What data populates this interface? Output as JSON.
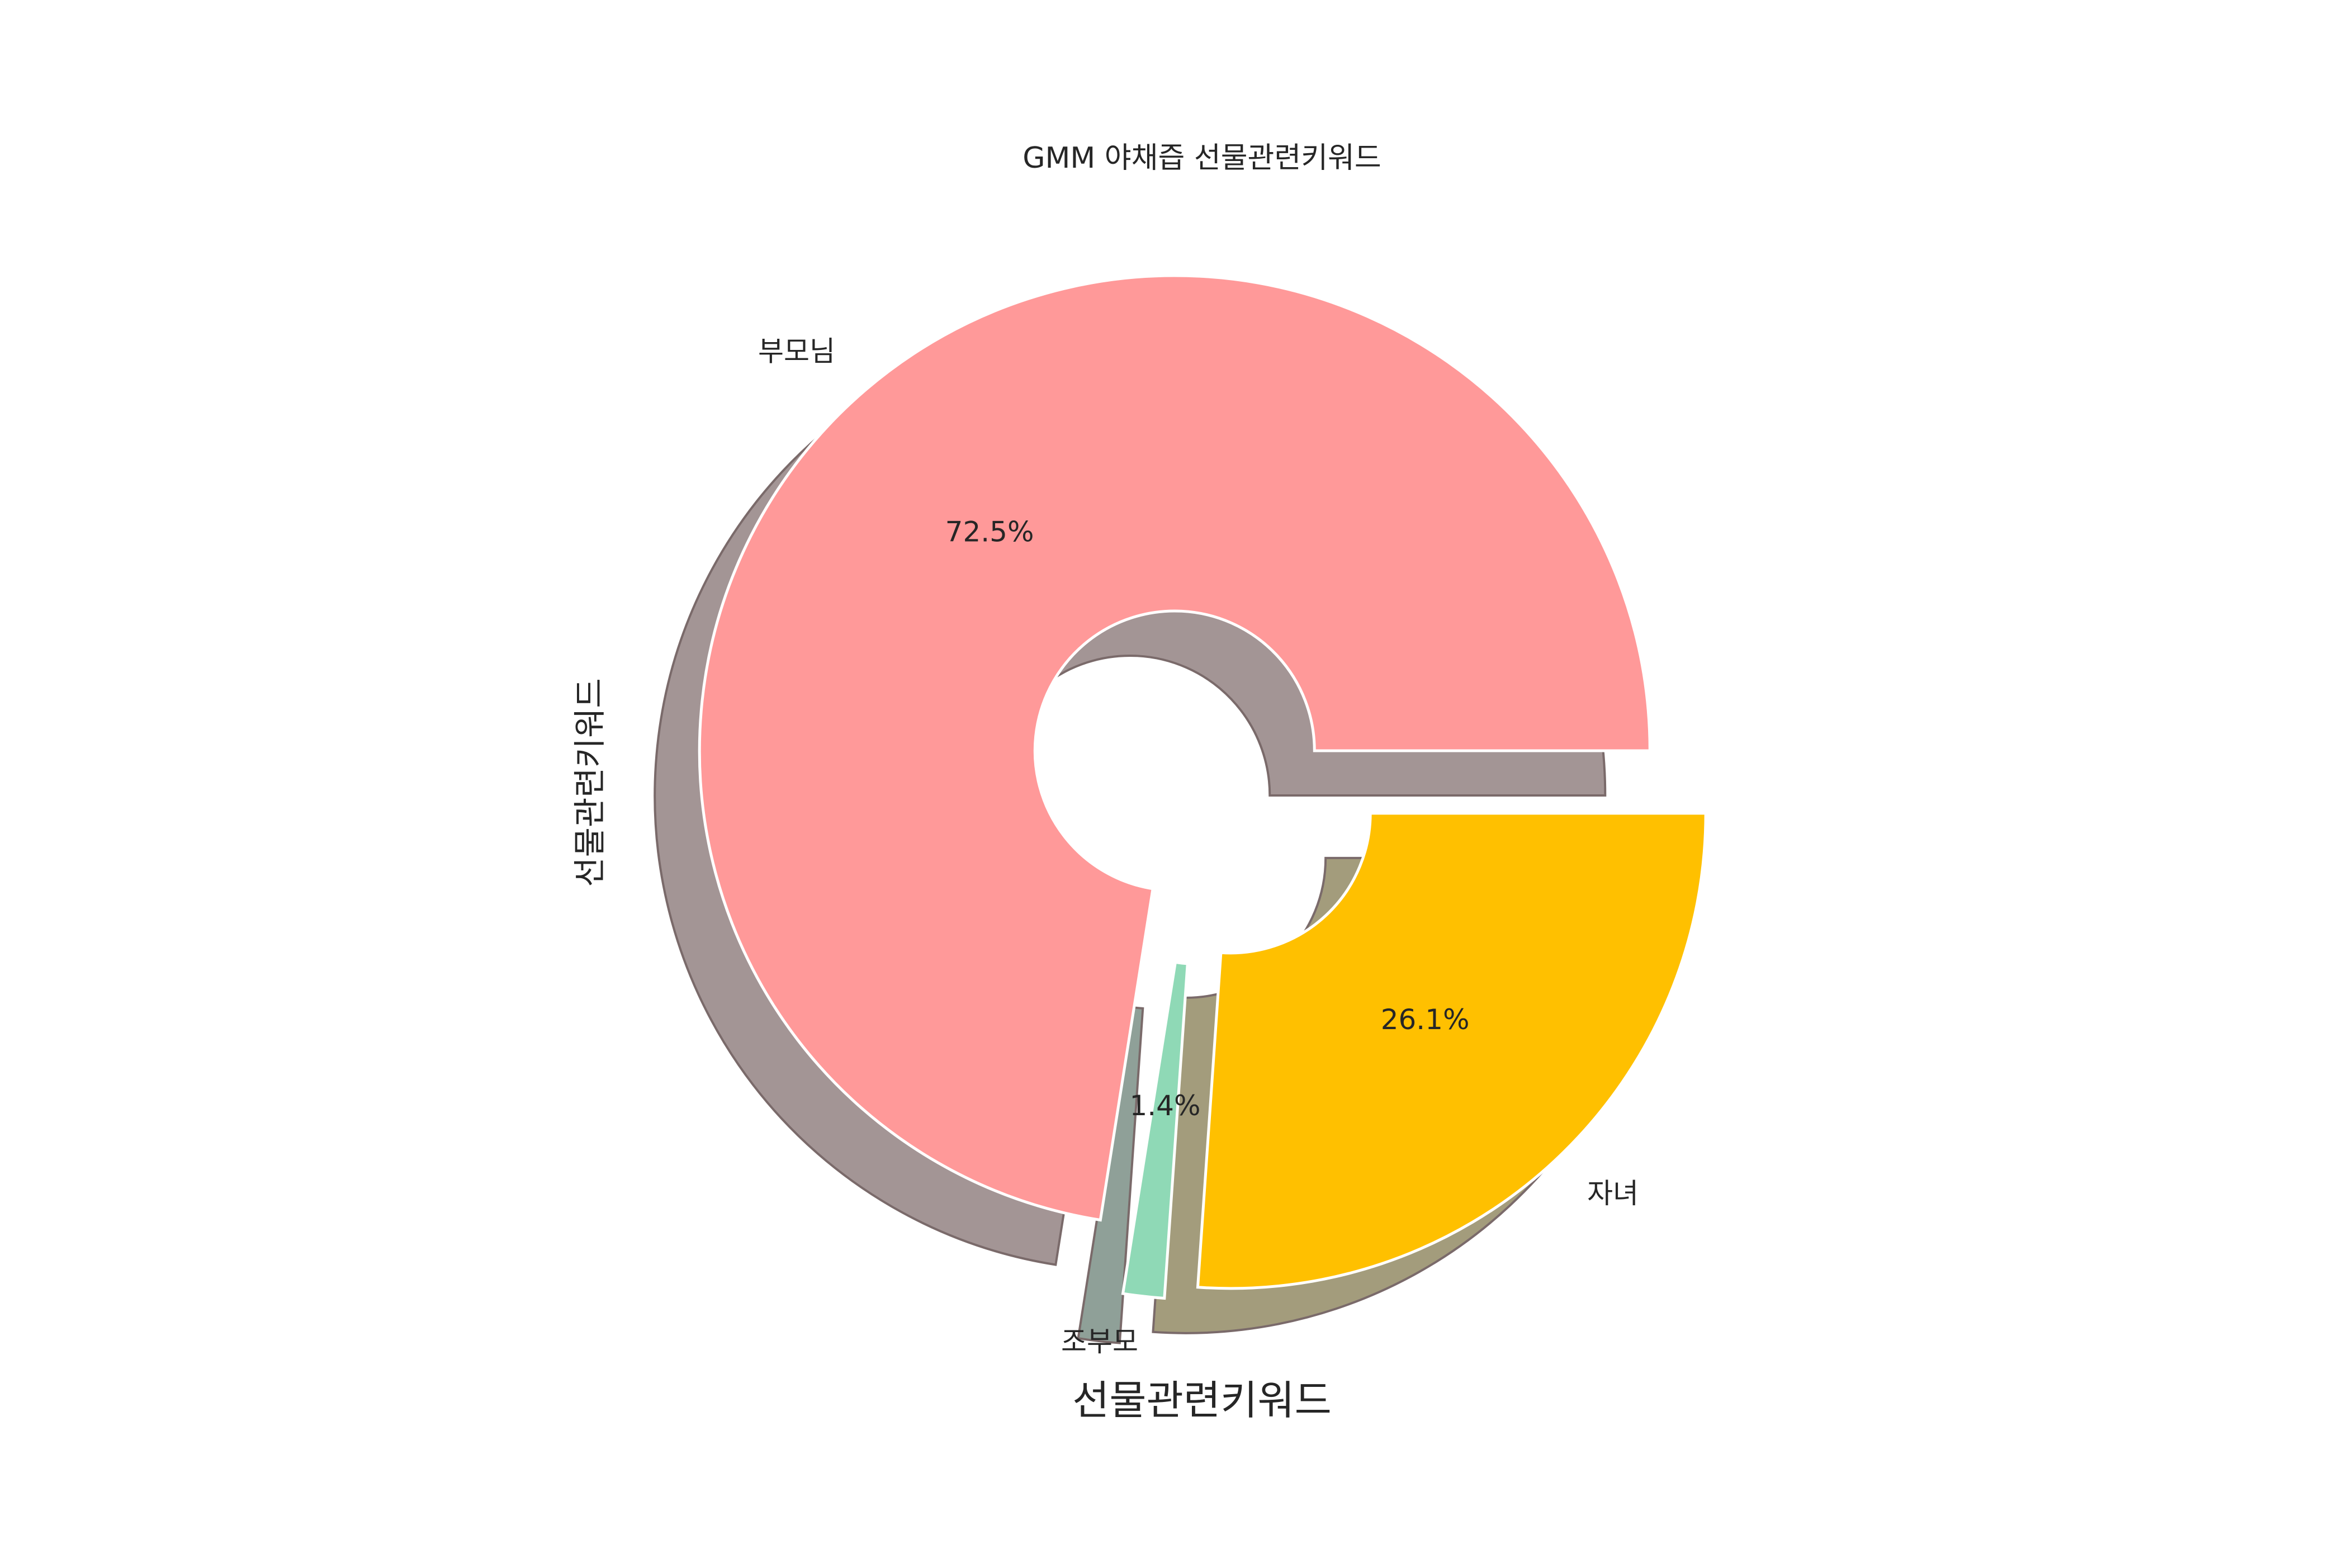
{
  "chart_data": {
    "type": "pie",
    "donut": true,
    "shadow": true,
    "title": "GMM 야채즙 선물관련키워드",
    "xlabel": "선물관련키워드",
    "ylabel": "선물관련키워드",
    "categories": [
      "부모님",
      "조부모",
      "자녀"
    ],
    "values": [
      72.5,
      1.4,
      26.1
    ],
    "percent_labels": [
      "72.5%",
      "1.4%",
      "26.1%"
    ],
    "colors": [
      "#ff9999",
      "#8fd9b6",
      "#ffc000"
    ],
    "shadow_colors": [
      "#a39595",
      "#8fa098",
      "#a39c7c"
    ],
    "explode": [
      true,
      true,
      true
    ]
  }
}
